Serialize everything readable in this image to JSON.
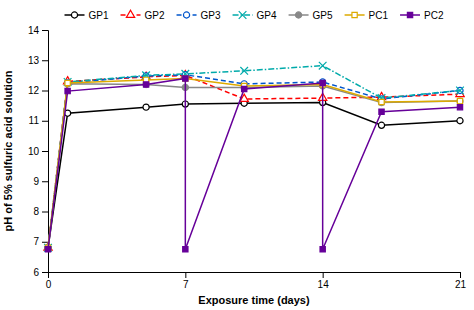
{
  "chart_data": {
    "type": "line",
    "xlabel": "Exposure time (days)",
    "ylabel": "pH of 5% sulfuric acid solution",
    "xlim": [
      0,
      21
    ],
    "ylim": [
      6,
      14
    ],
    "xticks": [
      0,
      7,
      14,
      21
    ],
    "yticks": [
      6,
      7,
      8,
      9,
      10,
      11,
      12,
      13,
      14
    ],
    "grid": false,
    "legend": "top",
    "series": [
      {
        "name": "GP1",
        "color": "#000000",
        "marker": "open-circle",
        "line_style": "solid",
        "x": [
          0,
          1,
          5,
          7,
          10,
          14,
          17,
          21
        ],
        "values": [
          6.8,
          11.25,
          11.45,
          11.55,
          11.58,
          11.6,
          10.85,
          11.0
        ]
      },
      {
        "name": "GP2",
        "color": "#ff0000",
        "marker": "open-triangle",
        "line_style": "dashed",
        "x": [
          0,
          1,
          5,
          7,
          10,
          14,
          17,
          21
        ],
        "values": [
          6.8,
          12.3,
          12.45,
          12.5,
          11.72,
          11.75,
          11.78,
          11.88
        ]
      },
      {
        "name": "GP3",
        "color": "#0055cc",
        "marker": "open-circle",
        "line_style": "dashed",
        "x": [
          0,
          1,
          5,
          7,
          10,
          14,
          17,
          21
        ],
        "values": [
          6.8,
          12.25,
          12.48,
          12.52,
          12.22,
          12.28,
          11.72,
          12.0
        ]
      },
      {
        "name": "GP4",
        "color": "#00aaaa",
        "marker": "x",
        "line_style": "dashdot",
        "x": [
          0,
          1,
          5,
          7,
          10,
          14,
          17,
          21
        ],
        "values": [
          6.8,
          12.28,
          12.5,
          12.55,
          12.65,
          12.82,
          11.75,
          12.0
        ]
      },
      {
        "name": "GP5",
        "color": "#888888",
        "marker": "circle",
        "line_style": "solid",
        "x": [
          0,
          1,
          5,
          7,
          10,
          14,
          17,
          21
        ],
        "values": [
          6.8,
          12.22,
          12.2,
          12.1,
          12.1,
          12.15,
          11.6,
          11.65
        ]
      },
      {
        "name": "PC1",
        "color": "#ddaa00",
        "marker": "open-square",
        "line_style": "solid",
        "x": [
          0,
          1,
          5,
          7,
          10,
          14,
          17,
          21
        ],
        "values": [
          6.8,
          12.25,
          12.35,
          12.4,
          12.15,
          12.2,
          11.62,
          11.65
        ]
      },
      {
        "name": "PC2",
        "color": "#660099",
        "marker": "square",
        "line_style": "solid",
        "x": [
          0,
          1,
          5,
          7,
          7,
          10,
          14,
          14,
          17,
          21
        ],
        "values": [
          6.75,
          11.98,
          12.2,
          12.4,
          6.75,
          12.05,
          12.25,
          6.75,
          11.3,
          11.45
        ]
      }
    ]
  }
}
